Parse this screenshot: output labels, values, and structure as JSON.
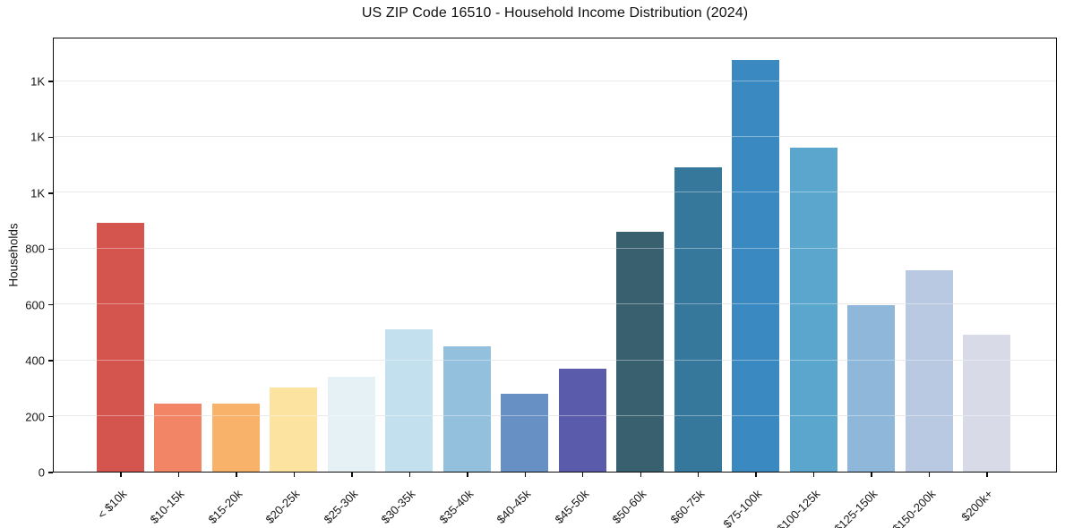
{
  "chart_data": {
    "type": "bar",
    "title": "US ZIP Code 16510 - Household Income Distribution (2024)",
    "xlabel": "",
    "ylabel": "Households",
    "categories": [
      "< $10k",
      "$10-15k",
      "$15-20k",
      "$20-25k",
      "$25-30k",
      "$30-35k",
      "$35-40k",
      "$40-45k",
      "$45-50k",
      "$50-60k",
      "$60-75k",
      "$75-100k",
      "$100-125k",
      "$125-150k",
      "$150-200k",
      "$200k+"
    ],
    "values": [
      890,
      245,
      245,
      300,
      340,
      510,
      450,
      280,
      370,
      860,
      1090,
      1475,
      1160,
      595,
      720,
      490
    ],
    "bar_colors": [
      "#d4544e",
      "#f28566",
      "#f9b269",
      "#fce3a0",
      "#e6f1f5",
      "#c2e0ee",
      "#93c0dd",
      "#6791c5",
      "#5a5baa",
      "#38606f",
      "#36789c",
      "#3a8ac1",
      "#5ba6cd",
      "#8fb7d9",
      "#b9c9e2",
      "#d9dae7"
    ],
    "ylim": [
      0,
      1557
    ],
    "yticks": {
      "values": [
        0,
        200,
        400,
        600,
        800,
        1000,
        1200,
        1400
      ],
      "labels": [
        "0",
        "200",
        "400",
        "600",
        "800",
        "1K",
        "1K",
        "1K"
      ]
    },
    "grid": "horizontal",
    "legend": "none",
    "plot_border_color": "#0b0b0b",
    "background_color": "#ffffff"
  }
}
